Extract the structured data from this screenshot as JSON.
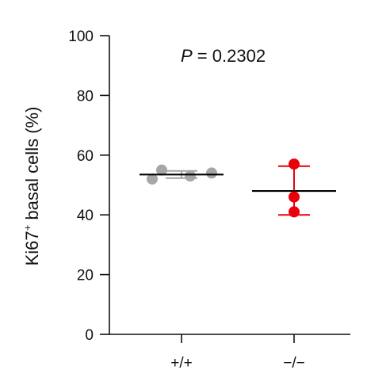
{
  "chart_data": {
    "type": "scatter",
    "title": "",
    "annotation": {
      "prefix": "P",
      "text": " = 0.2302"
    },
    "ylabel": {
      "main": "Ki67",
      "superscript": "+",
      "rest": " basal cells (%)"
    },
    "xlabel": "",
    "categories": [
      "+/+",
      "−/−"
    ],
    "ylim": [
      0,
      100
    ],
    "yticks": [
      0,
      20,
      40,
      60,
      80,
      100
    ],
    "grid": false,
    "series": [
      {
        "category": "+/+",
        "color": "#a6a6a6",
        "points": [
          52,
          55,
          53,
          54
        ],
        "mean": 53.5,
        "sd_low": 52.3,
        "sd_high": 54.7
      },
      {
        "category": "−/−",
        "color": "#e8000b",
        "points": [
          57,
          46,
          41
        ],
        "mean": 48,
        "sd_low": 40,
        "sd_high": 56.3
      }
    ],
    "mean_line_color": "#000000"
  }
}
